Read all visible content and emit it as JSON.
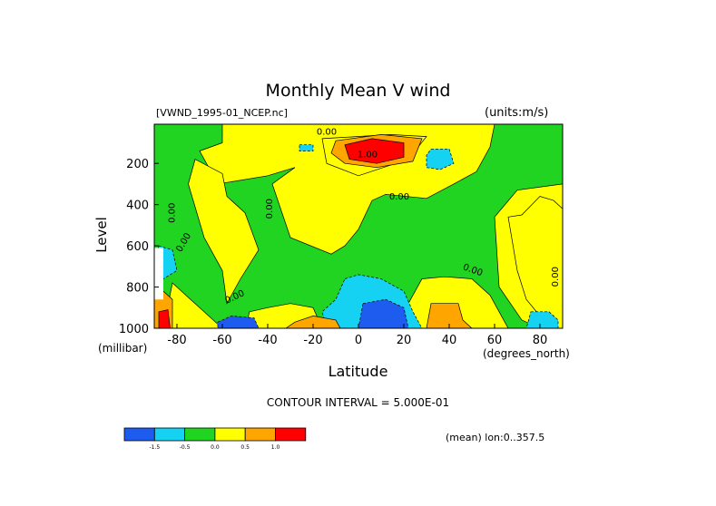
{
  "colors": {
    "level_fills": [
      "#1e5cf0",
      "#16d2f2",
      "#22d422",
      "#ffff00",
      "#ffa500",
      "#ff0000"
    ],
    "background": "#ffffff",
    "lines": "#000000"
  },
  "chart_data": {
    "type": "heatmap",
    "title": "Monthly Mean V wind",
    "dataset": "[VWND_1995-01_NCEP.nc]",
    "units": "(units:m/s)",
    "xlabel": "Latitude",
    "x_unit": "(degrees_north)",
    "ylabel": "Level",
    "y_unit": "(millibar)",
    "xlim": [
      -90,
      90
    ],
    "ylim": [
      1000,
      10
    ],
    "x_ticks": [
      -80,
      -60,
      -40,
      -20,
      0,
      20,
      40,
      60,
      80
    ],
    "x_tick_labels": [
      "-80",
      "-60",
      "-40",
      "-20",
      "0",
      "20",
      "40",
      "60",
      "80"
    ],
    "y_ticks": [
      200,
      400,
      600,
      800,
      1000
    ],
    "y_tick_labels": [
      "200",
      "400",
      "600",
      "800",
      "1000"
    ],
    "contour_interval": "CONTOUR INTERVAL = 5.000E-01",
    "mean_note": "(mean) lon:0..357.5",
    "colorbar_labels": [
      "-1.5",
      "-0.5",
      "0.0",
      "0.5",
      "1.0"
    ],
    "contour_labels": [
      {
        "text": "0.00",
        "lat": -14,
        "lev": 60,
        "rot": 0
      },
      {
        "text": "1.00",
        "lat": 4,
        "lev": 170,
        "rot": 0
      },
      {
        "text": "0.00",
        "lat": 18,
        "lev": 375,
        "rot": 0
      },
      {
        "text": "0.00",
        "lat": -81,
        "lev": 440,
        "rot": -90
      },
      {
        "text": "0.00",
        "lat": -38,
        "lev": 420,
        "rot": -90
      },
      {
        "text": "0.00",
        "lat": -76,
        "lev": 590,
        "rot": -60
      },
      {
        "text": "0.00",
        "lat": 50,
        "lev": 730,
        "rot": 20
      },
      {
        "text": "0.00",
        "lat": -54,
        "lev": 860,
        "rot": -25
      },
      {
        "text": "0.00",
        "lat": 88,
        "lev": 750,
        "rot": -90
      }
    ],
    "regions": [
      {
        "level": 3,
        "points": [
          [
            -90,
            10
          ],
          [
            90,
            10
          ],
          [
            90,
            1000
          ],
          [
            -90,
            1000
          ]
        ]
      },
      {
        "level": 2,
        "points": [
          [
            -90,
            10
          ],
          [
            -60,
            10
          ],
          [
            -60,
            100
          ],
          [
            -70,
            140
          ],
          [
            -62,
            300
          ],
          [
            -40,
            260
          ],
          [
            -28,
            220
          ],
          [
            -38,
            300
          ],
          [
            -30,
            560
          ],
          [
            -12,
            640
          ],
          [
            -6,
            600
          ],
          [
            0,
            520
          ],
          [
            6,
            380
          ],
          [
            12,
            350
          ],
          [
            30,
            370
          ],
          [
            42,
            300
          ],
          [
            52,
            240
          ],
          [
            58,
            120
          ],
          [
            60,
            10
          ],
          [
            90,
            10
          ],
          [
            90,
            300
          ],
          [
            70,
            330
          ],
          [
            60,
            460
          ],
          [
            62,
            800
          ],
          [
            72,
            960
          ],
          [
            80,
            1000
          ],
          [
            -90,
            1000
          ]
        ]
      },
      {
        "level": 3,
        "points": [
          [
            -86,
            1000
          ],
          [
            -82,
            780
          ],
          [
            -74,
            860
          ],
          [
            -62,
            980
          ],
          [
            -58,
            1000
          ]
        ]
      },
      {
        "level": 3,
        "points": [
          [
            -72,
            180
          ],
          [
            -75,
            300
          ],
          [
            -68,
            560
          ],
          [
            -60,
            720
          ],
          [
            -58,
            880
          ],
          [
            -52,
            760
          ],
          [
            -44,
            620
          ],
          [
            -50,
            440
          ],
          [
            -58,
            360
          ],
          [
            -60,
            250
          ]
        ]
      },
      {
        "level": 3,
        "points": [
          [
            -48,
            920
          ],
          [
            -40,
            900
          ],
          [
            -30,
            880
          ],
          [
            -20,
            900
          ],
          [
            -16,
            1000
          ],
          [
            -50,
            1000
          ]
        ]
      },
      {
        "level": 3,
        "points": [
          [
            28,
            760
          ],
          [
            38,
            750
          ],
          [
            50,
            760
          ],
          [
            58,
            840
          ],
          [
            62,
            920
          ],
          [
            66,
            1000
          ],
          [
            24,
            1000
          ],
          [
            22,
            880
          ]
        ]
      },
      {
        "level": 3,
        "points": [
          [
            66,
            460
          ],
          [
            72,
            450
          ],
          [
            80,
            360
          ],
          [
            86,
            380
          ],
          [
            90,
            420
          ],
          [
            90,
            1000
          ],
          [
            84,
            1000
          ],
          [
            80,
            940
          ],
          [
            74,
            860
          ],
          [
            70,
            720
          ]
        ]
      },
      {
        "level": 3,
        "points": [
          [
            -16,
            80
          ],
          [
            14,
            60
          ],
          [
            30,
            70
          ],
          [
            22,
            180
          ],
          [
            0,
            260
          ],
          [
            -14,
            200
          ]
        ]
      },
      {
        "level": 1,
        "points": [
          [
            -88,
            600
          ],
          [
            -82,
            620
          ],
          [
            -80,
            720
          ],
          [
            -86,
            760
          ],
          [
            -90,
            720
          ]
        ]
      },
      {
        "level": 1,
        "points": [
          [
            -6,
            760
          ],
          [
            0,
            740
          ],
          [
            10,
            760
          ],
          [
            20,
            820
          ],
          [
            24,
            920
          ],
          [
            28,
            1000
          ],
          [
            -14,
            1000
          ],
          [
            -16,
            920
          ],
          [
            -10,
            860
          ]
        ]
      },
      {
        "level": 1,
        "points": [
          [
            32,
            130
          ],
          [
            40,
            130
          ],
          [
            42,
            200
          ],
          [
            36,
            230
          ],
          [
            30,
            220
          ],
          [
            30,
            160
          ]
        ]
      },
      {
        "level": 1,
        "points": [
          [
            -26,
            110
          ],
          [
            -20,
            110
          ],
          [
            -20,
            140
          ],
          [
            -26,
            140
          ]
        ]
      },
      {
        "level": 1,
        "points": [
          [
            76,
            920
          ],
          [
            84,
            920
          ],
          [
            88,
            960
          ],
          [
            88,
            1000
          ],
          [
            74,
            1000
          ]
        ]
      },
      {
        "level": 0,
        "points": [
          [
            -62,
            970
          ],
          [
            -56,
            940
          ],
          [
            -46,
            950
          ],
          [
            -44,
            1000
          ],
          [
            -62,
            1000
          ]
        ]
      },
      {
        "level": 0,
        "points": [
          [
            2,
            880
          ],
          [
            12,
            860
          ],
          [
            20,
            900
          ],
          [
            22,
            1000
          ],
          [
            0,
            1000
          ]
        ]
      },
      {
        "level": 4,
        "points": [
          [
            -10,
            90
          ],
          [
            10,
            60
          ],
          [
            28,
            80
          ],
          [
            24,
            190
          ],
          [
            8,
            220
          ],
          [
            -6,
            200
          ],
          [
            -12,
            150
          ]
        ]
      },
      {
        "level": 4,
        "points": [
          [
            -28,
            970
          ],
          [
            -20,
            940
          ],
          [
            -10,
            960
          ],
          [
            -8,
            1000
          ],
          [
            -32,
            1000
          ]
        ]
      },
      {
        "level": 4,
        "points": [
          [
            32,
            880
          ],
          [
            44,
            880
          ],
          [
            46,
            960
          ],
          [
            50,
            1000
          ],
          [
            30,
            1000
          ]
        ]
      },
      {
        "level": 4,
        "points": [
          [
            -90,
            860
          ],
          [
            -86,
            820
          ],
          [
            -82,
            860
          ],
          [
            -82,
            1000
          ],
          [
            -90,
            1000
          ]
        ]
      },
      {
        "level": 5,
        "points": [
          [
            -6,
            110
          ],
          [
            6,
            80
          ],
          [
            20,
            100
          ],
          [
            20,
            170
          ],
          [
            8,
            200
          ],
          [
            -4,
            180
          ]
        ]
      },
      {
        "level": 5,
        "points": [
          [
            -88,
            920
          ],
          [
            -84,
            910
          ],
          [
            -83,
            1000
          ],
          [
            -88,
            1000
          ]
        ]
      }
    ],
    "blanks": [
      {
        "points": [
          [
            -90,
            610
          ],
          [
            -86,
            610
          ],
          [
            -86,
            860
          ],
          [
            -90,
            860
          ]
        ]
      }
    ]
  }
}
